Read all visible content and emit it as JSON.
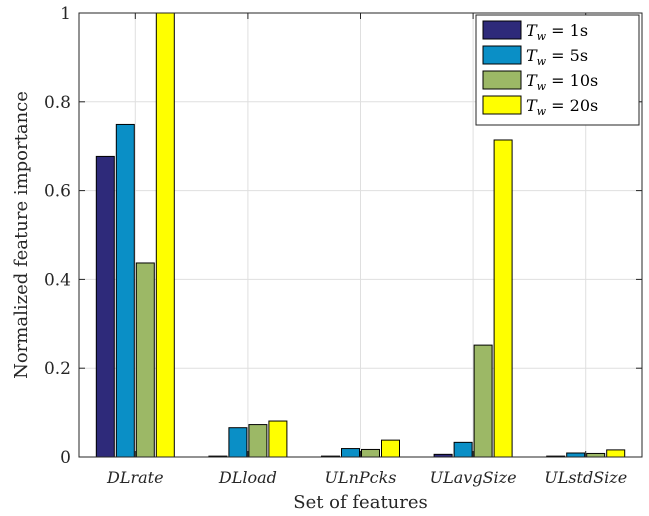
{
  "chart_data": {
    "type": "bar",
    "xlabel": "Set of features",
    "ylabel": "Normalized feature importance",
    "ylim": [
      0,
      1
    ],
    "yticks": [
      "0",
      "0.2",
      "0.4",
      "0.6",
      "0.8",
      "1"
    ],
    "categories": [
      "DLrate",
      "DLload",
      "ULnPcks",
      "ULavgSize",
      "ULstdSize"
    ],
    "legend_position": "top-right",
    "grid": true,
    "series": [
      {
        "name": "T_w = 1s",
        "legend_value": "1s",
        "color": "#2e2a7a",
        "values": [
          0.677,
          0.002,
          0.002,
          0.006,
          0.002
        ]
      },
      {
        "name": "T_w = 5s",
        "legend_value": "5s",
        "color": "#0a8fc6",
        "values": [
          0.749,
          0.066,
          0.019,
          0.033,
          0.009
        ]
      },
      {
        "name": "T_w = 10s",
        "legend_value": "10s",
        "color": "#9cb866",
        "values": [
          0.437,
          0.073,
          0.017,
          0.252,
          0.008
        ]
      },
      {
        "name": "T_w = 20s",
        "legend_value": "20s",
        "color": "#ffff00",
        "values": [
          1.0,
          0.081,
          0.038,
          0.714,
          0.016
        ]
      }
    ]
  }
}
